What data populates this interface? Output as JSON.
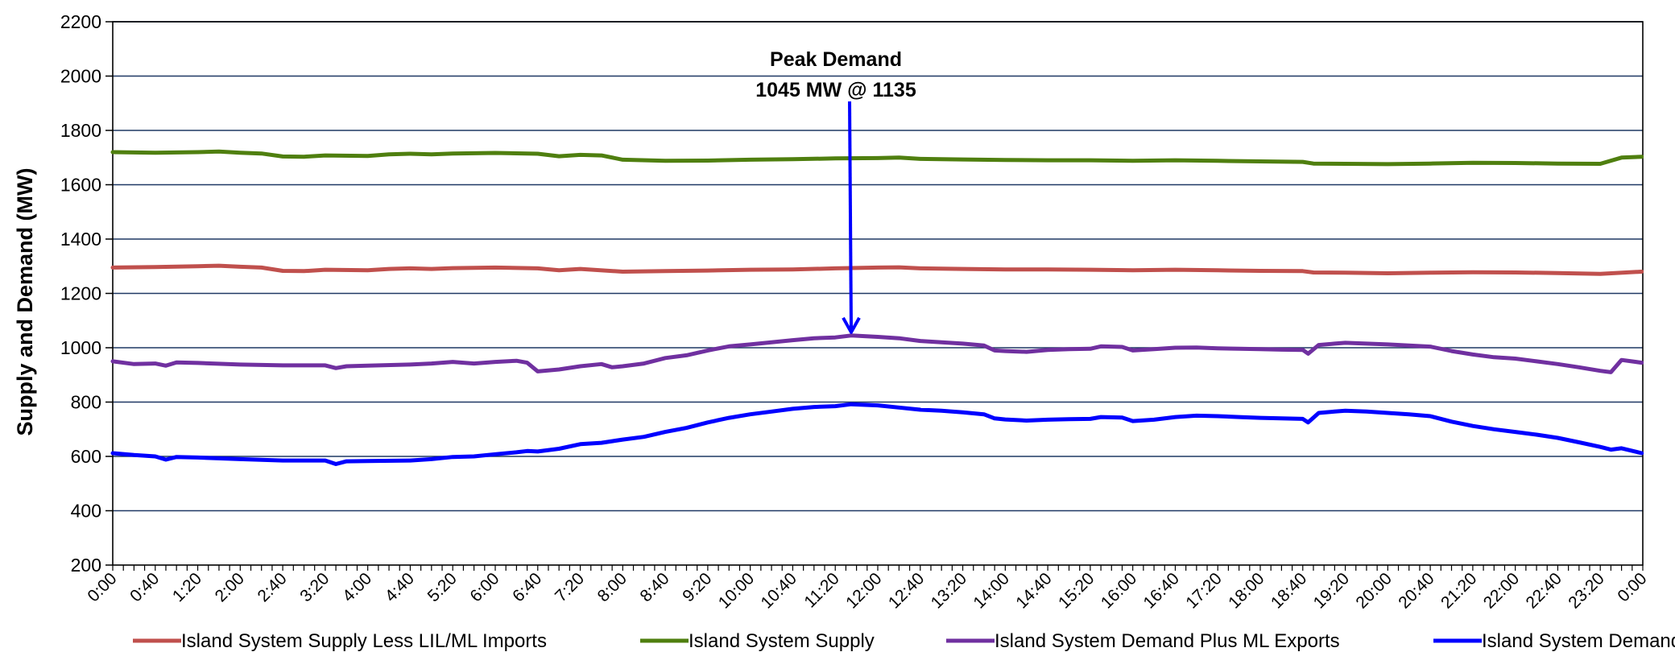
{
  "chart_data": {
    "type": "line",
    "ylabel": "Supply and Demand (MW)",
    "xlabel": "",
    "ylim": [
      200,
      2200
    ],
    "yticks": [
      "200",
      "400",
      "600",
      "800",
      "1000",
      "1200",
      "1400",
      "1600",
      "1800",
      "2000",
      "2200"
    ],
    "xticks": [
      "0:00",
      "0:40",
      "1:20",
      "2:00",
      "2:40",
      "3:20",
      "4:00",
      "4:40",
      "5:20",
      "6:00",
      "6:40",
      "7:20",
      "8:00",
      "8:40",
      "9:20",
      "10:00",
      "10:40",
      "11:20",
      "12:00",
      "12:40",
      "13:20",
      "14:00",
      "14:40",
      "15:20",
      "16:00",
      "16:40",
      "17:20",
      "18:00",
      "18:40",
      "19:20",
      "20:00",
      "20:40",
      "21:20",
      "22:00",
      "22:40",
      "23:20",
      "0:00"
    ],
    "grid": true,
    "legend_position": "bottom",
    "annotation": {
      "line1": "Peak Demand",
      "line2": "1045 MW @ 1135",
      "x": "11:35",
      "y": 1045
    },
    "series": [
      {
        "name": "Island System Supply Less LIL/ML Imports",
        "color": "#c0504d",
        "points": [
          [
            "0:00",
            1295
          ],
          [
            "0:40",
            1297
          ],
          [
            "1:20",
            1300
          ],
          [
            "1:40",
            1302
          ],
          [
            "2:00",
            1298
          ],
          [
            "2:20",
            1295
          ],
          [
            "2:40",
            1283
          ],
          [
            "3:00",
            1282
          ],
          [
            "3:20",
            1287
          ],
          [
            "4:00",
            1285
          ],
          [
            "4:20",
            1290
          ],
          [
            "4:40",
            1292
          ],
          [
            "5:00",
            1290
          ],
          [
            "5:20",
            1293
          ],
          [
            "6:00",
            1295
          ],
          [
            "6:40",
            1292
          ],
          [
            "7:00",
            1285
          ],
          [
            "7:20",
            1290
          ],
          [
            "8:00",
            1280
          ],
          [
            "8:40",
            1282
          ],
          [
            "9:20",
            1284
          ],
          [
            "10:00",
            1287
          ],
          [
            "10:40",
            1288
          ],
          [
            "11:20",
            1292
          ],
          [
            "12:00",
            1295
          ],
          [
            "12:20",
            1296
          ],
          [
            "12:40",
            1292
          ],
          [
            "13:20",
            1290
          ],
          [
            "14:00",
            1288
          ],
          [
            "14:40",
            1288
          ],
          [
            "15:20",
            1287
          ],
          [
            "16:00",
            1285
          ],
          [
            "16:40",
            1287
          ],
          [
            "17:20",
            1285
          ],
          [
            "18:00",
            1283
          ],
          [
            "18:40",
            1282
          ],
          [
            "18:50",
            1277
          ],
          [
            "19:20",
            1276
          ],
          [
            "20:00",
            1274
          ],
          [
            "20:40",
            1276
          ],
          [
            "21:20",
            1278
          ],
          [
            "22:00",
            1277
          ],
          [
            "22:40",
            1275
          ],
          [
            "23:20",
            1272
          ],
          [
            "23:59",
            1280
          ]
        ]
      },
      {
        "name": "Island System Supply",
        "color": "#4f7f0f",
        "points": [
          [
            "0:00",
            1720
          ],
          [
            "0:40",
            1718
          ],
          [
            "1:20",
            1720
          ],
          [
            "1:40",
            1722
          ],
          [
            "2:00",
            1718
          ],
          [
            "2:20",
            1715
          ],
          [
            "2:40",
            1704
          ],
          [
            "3:00",
            1703
          ],
          [
            "3:20",
            1708
          ],
          [
            "4:00",
            1706
          ],
          [
            "4:20",
            1712
          ],
          [
            "4:40",
            1714
          ],
          [
            "5:00",
            1712
          ],
          [
            "5:20",
            1715
          ],
          [
            "6:00",
            1717
          ],
          [
            "6:40",
            1714
          ],
          [
            "7:00",
            1705
          ],
          [
            "7:20",
            1710
          ],
          [
            "7:40",
            1708
          ],
          [
            "8:00",
            1692
          ],
          [
            "8:40",
            1688
          ],
          [
            "9:20",
            1689
          ],
          [
            "10:00",
            1692
          ],
          [
            "10:40",
            1694
          ],
          [
            "11:20",
            1697
          ],
          [
            "12:00",
            1698
          ],
          [
            "12:20",
            1700
          ],
          [
            "12:40",
            1695
          ],
          [
            "13:20",
            1693
          ],
          [
            "14:00",
            1691
          ],
          [
            "14:40",
            1690
          ],
          [
            "15:20",
            1690
          ],
          [
            "16:00",
            1688
          ],
          [
            "16:40",
            1690
          ],
          [
            "17:20",
            1688
          ],
          [
            "18:00",
            1686
          ],
          [
            "18:40",
            1684
          ],
          [
            "18:50",
            1678
          ],
          [
            "19:20",
            1677
          ],
          [
            "20:00",
            1676
          ],
          [
            "20:40",
            1678
          ],
          [
            "21:20",
            1681
          ],
          [
            "22:00",
            1680
          ],
          [
            "22:40",
            1678
          ],
          [
            "23:20",
            1677
          ],
          [
            "23:40",
            1700
          ],
          [
            "23:59",
            1703
          ]
        ]
      },
      {
        "name": "Island System Demand Plus ML Exports",
        "color": "#7030a0",
        "points": [
          [
            "0:00",
            950
          ],
          [
            "0:20",
            940
          ],
          [
            "0:40",
            942
          ],
          [
            "0:50",
            934
          ],
          [
            "1:00",
            946
          ],
          [
            "1:20",
            944
          ],
          [
            "2:00",
            938
          ],
          [
            "2:40",
            935
          ],
          [
            "3:20",
            935
          ],
          [
            "3:30",
            925
          ],
          [
            "3:40",
            932
          ],
          [
            "4:00",
            934
          ],
          [
            "4:40",
            938
          ],
          [
            "5:00",
            942
          ],
          [
            "5:20",
            948
          ],
          [
            "5:40",
            942
          ],
          [
            "6:00",
            948
          ],
          [
            "6:20",
            952
          ],
          [
            "6:30",
            945
          ],
          [
            "6:40",
            913
          ],
          [
            "7:00",
            920
          ],
          [
            "7:20",
            932
          ],
          [
            "7:40",
            940
          ],
          [
            "7:50",
            928
          ],
          [
            "8:00",
            932
          ],
          [
            "8:20",
            942
          ],
          [
            "8:40",
            962
          ],
          [
            "9:00",
            972
          ],
          [
            "9:20",
            990
          ],
          [
            "9:40",
            1005
          ],
          [
            "10:00",
            1012
          ],
          [
            "10:20",
            1020
          ],
          [
            "10:40",
            1028
          ],
          [
            "11:00",
            1035
          ],
          [
            "11:20",
            1038
          ],
          [
            "11:35",
            1045
          ],
          [
            "12:00",
            1040
          ],
          [
            "12:20",
            1035
          ],
          [
            "12:40",
            1025
          ],
          [
            "13:00",
            1020
          ],
          [
            "13:20",
            1015
          ],
          [
            "13:40",
            1008
          ],
          [
            "13:50",
            990
          ],
          [
            "14:00",
            988
          ],
          [
            "14:20",
            985
          ],
          [
            "14:40",
            992
          ],
          [
            "15:00",
            995
          ],
          [
            "15:20",
            996
          ],
          [
            "15:30",
            1005
          ],
          [
            "15:50",
            1003
          ],
          [
            "16:00",
            990
          ],
          [
            "16:20",
            995
          ],
          [
            "16:40",
            1000
          ],
          [
            "17:00",
            1001
          ],
          [
            "17:20",
            998
          ],
          [
            "17:40",
            996
          ],
          [
            "18:00",
            995
          ],
          [
            "18:20",
            993
          ],
          [
            "18:40",
            992
          ],
          [
            "18:45",
            978
          ],
          [
            "18:55",
            1010
          ],
          [
            "19:10",
            1015
          ],
          [
            "19:20",
            1018
          ],
          [
            "19:40",
            1015
          ],
          [
            "20:00",
            1012
          ],
          [
            "20:20",
            1008
          ],
          [
            "20:40",
            1004
          ],
          [
            "21:00",
            988
          ],
          [
            "21:20",
            975
          ],
          [
            "21:40",
            965
          ],
          [
            "22:00",
            960
          ],
          [
            "22:20",
            950
          ],
          [
            "22:40",
            940
          ],
          [
            "23:00",
            928
          ],
          [
            "23:20",
            915
          ],
          [
            "23:30",
            910
          ],
          [
            "23:40",
            955
          ],
          [
            "23:59",
            945
          ]
        ]
      },
      {
        "name": "Island System Demand",
        "color": "#0000ff",
        "points": [
          [
            "0:00",
            612
          ],
          [
            "0:20",
            605
          ],
          [
            "0:40",
            600
          ],
          [
            "0:50",
            588
          ],
          [
            "1:00",
            598
          ],
          [
            "1:20",
            596
          ],
          [
            "2:00",
            590
          ],
          [
            "2:40",
            585
          ],
          [
            "3:20",
            585
          ],
          [
            "3:30",
            572
          ],
          [
            "3:40",
            582
          ],
          [
            "4:00",
            583
          ],
          [
            "4:40",
            585
          ],
          [
            "5:00",
            590
          ],
          [
            "5:20",
            598
          ],
          [
            "5:40",
            600
          ],
          [
            "6:00",
            608
          ],
          [
            "6:20",
            615
          ],
          [
            "6:30",
            620
          ],
          [
            "6:40",
            618
          ],
          [
            "7:00",
            628
          ],
          [
            "7:20",
            645
          ],
          [
            "7:40",
            650
          ],
          [
            "8:00",
            662
          ],
          [
            "8:20",
            672
          ],
          [
            "8:40",
            690
          ],
          [
            "9:00",
            705
          ],
          [
            "9:20",
            725
          ],
          [
            "9:40",
            742
          ],
          [
            "10:00",
            755
          ],
          [
            "10:20",
            765
          ],
          [
            "10:40",
            775
          ],
          [
            "11:00",
            782
          ],
          [
            "11:20",
            785
          ],
          [
            "11:35",
            792
          ],
          [
            "12:00",
            788
          ],
          [
            "12:20",
            780
          ],
          [
            "12:40",
            772
          ],
          [
            "13:00",
            768
          ],
          [
            "13:20",
            762
          ],
          [
            "13:40",
            755
          ],
          [
            "13:50",
            740
          ],
          [
            "14:00",
            736
          ],
          [
            "14:20",
            732
          ],
          [
            "14:40",
            735
          ],
          [
            "15:00",
            737
          ],
          [
            "15:20",
            738
          ],
          [
            "15:30",
            745
          ],
          [
            "15:50",
            743
          ],
          [
            "16:00",
            730
          ],
          [
            "16:20",
            735
          ],
          [
            "16:40",
            745
          ],
          [
            "17:00",
            750
          ],
          [
            "17:20",
            748
          ],
          [
            "17:40",
            745
          ],
          [
            "18:00",
            742
          ],
          [
            "18:20",
            740
          ],
          [
            "18:40",
            738
          ],
          [
            "18:45",
            725
          ],
          [
            "18:55",
            760
          ],
          [
            "19:10",
            765
          ],
          [
            "19:20",
            768
          ],
          [
            "19:40",
            765
          ],
          [
            "20:00",
            760
          ],
          [
            "20:20",
            755
          ],
          [
            "20:40",
            748
          ],
          [
            "21:00",
            728
          ],
          [
            "21:20",
            712
          ],
          [
            "21:40",
            700
          ],
          [
            "22:00",
            690
          ],
          [
            "22:20",
            680
          ],
          [
            "22:40",
            668
          ],
          [
            "23:00",
            652
          ],
          [
            "23:20",
            635
          ],
          [
            "23:30",
            625
          ],
          [
            "23:40",
            630
          ],
          [
            "23:59",
            612
          ]
        ]
      }
    ]
  }
}
